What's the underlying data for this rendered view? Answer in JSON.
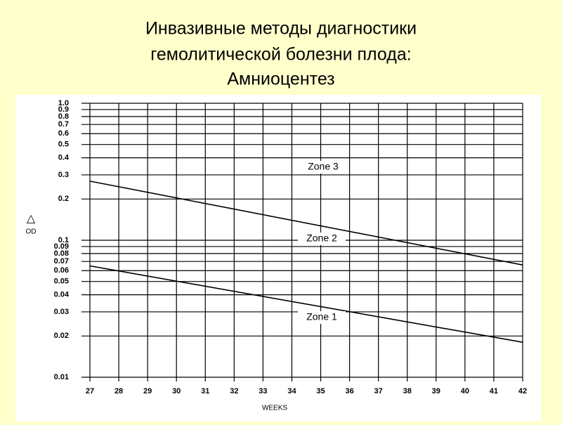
{
  "title_lines": [
    "Инвазивные методы диагностики",
    "гемолитической болезни плода:",
    "Амниоцентез"
  ],
  "chart_data": {
    "type": "line",
    "x": [
      27,
      42
    ],
    "series": [
      {
        "color": "#000000",
        "values": [
          0.27,
          0.066
        ]
      },
      {
        "color": "#000000",
        "values": [
          0.065,
          0.018
        ]
      }
    ],
    "annotations": [
      "Zone 3",
      "Zone 2",
      "Zone 1"
    ],
    "xlabel": "WEEKS",
    "ylabel": [
      "△",
      "OD"
    ],
    "xlim": [
      27,
      42
    ],
    "xticks": [
      27,
      28,
      29,
      30,
      31,
      32,
      33,
      34,
      35,
      36,
      37,
      38,
      39,
      40,
      41,
      42
    ],
    "ylim": [
      0.01,
      1
    ],
    "ylog": true,
    "yticks": [
      0.01,
      0.02,
      0.03,
      0.04,
      0.05,
      0.06,
      0.07,
      0.08,
      0.09,
      0.1,
      0.2,
      0.3,
      0.4,
      0.5,
      0.6,
      0.7,
      0.8,
      0.9,
      {
        "value": 1,
        "label": "1.0"
      }
    ],
    "grid": true
  }
}
